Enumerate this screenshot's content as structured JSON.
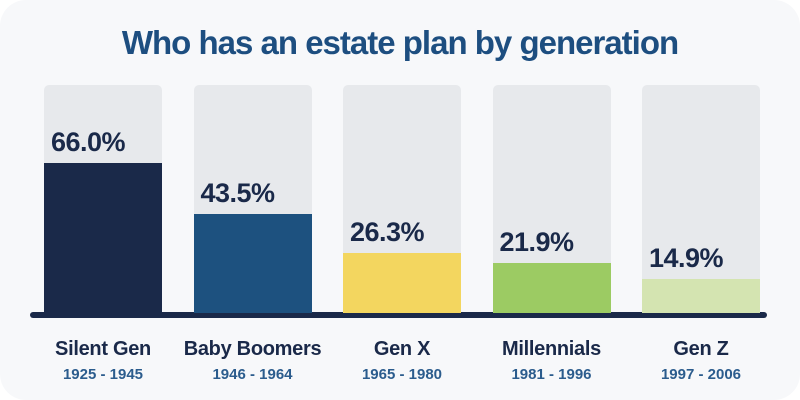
{
  "card": {
    "title": "Who has an estate plan by generation"
  },
  "chart_data": {
    "type": "bar",
    "title": "Who has an estate plan by generation",
    "categories": [
      "Silent Gen",
      "Baby Boomers",
      "Gen X",
      "Millennials",
      "Gen Z"
    ],
    "year_ranges": [
      "1925 - 1945",
      "1946 - 1964",
      "1965 - 1980",
      "1981 - 1996",
      "1997 - 2006"
    ],
    "values": [
      66.0,
      43.5,
      26.3,
      21.9,
      14.9
    ],
    "value_labels": [
      "66.0%",
      "43.5%",
      "26.3%",
      "21.9%",
      "14.9%"
    ],
    "bar_colors": [
      "#1a2949",
      "#1d517f",
      "#f3d65f",
      "#9ccb63",
      "#d4e4b1"
    ],
    "track_color": "#e7e9ec",
    "baseline_color": "#1a2949",
    "xlabel": "",
    "ylabel": "",
    "ylim": [
      0,
      100
    ],
    "grid": false,
    "legend": false,
    "orientation": "vertical",
    "value_label_position": "above-fill-left-aligned"
  },
  "colors": {
    "page_background": "#ffffff",
    "card_background": "#f7f8fa",
    "title_text": "#1d4e80",
    "value_label_text": "#1a2949",
    "category_label_text": "#1a2949",
    "year_label_text": "#2b5c8d"
  }
}
